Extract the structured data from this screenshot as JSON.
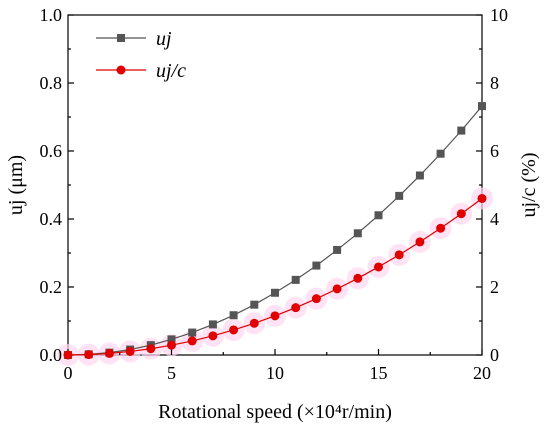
{
  "chart_data": {
    "type": "line",
    "xlabel": "Rotational speed (×10⁴r/min)",
    "ylabel": "uj (μm)",
    "y2label": "uj/c (%)",
    "xlim": [
      0,
      20
    ],
    "ylim": [
      0,
      1.0
    ],
    "y2lim": [
      0,
      10
    ],
    "x_ticks": [
      0,
      5,
      10,
      15,
      20
    ],
    "x_tick_labels": [
      "0",
      "5",
      "10",
      "15",
      "20"
    ],
    "y_ticks": [
      0,
      0.2,
      0.4,
      0.6,
      0.8,
      1.0
    ],
    "y_tick_labels": [
      "0.0",
      "0.2",
      "0.4",
      "0.6",
      "0.8",
      "1.0"
    ],
    "y2_ticks": [
      0,
      2,
      4,
      6,
      8,
      10
    ],
    "y2_tick_labels": [
      "0",
      "2",
      "4",
      "6",
      "8",
      "10"
    ],
    "grid": false,
    "legend_position": "top-left",
    "x": [
      0,
      1,
      2,
      3,
      4,
      5,
      6,
      7,
      8,
      9,
      10,
      11,
      12,
      13,
      14,
      15,
      16,
      17,
      18,
      19,
      20
    ],
    "series": [
      {
        "name": "uj",
        "axis": "left",
        "marker": "square",
        "color": "#555555",
        "values": [
          0.0,
          0.002,
          0.007,
          0.016,
          0.029,
          0.046,
          0.066,
          0.09,
          0.117,
          0.148,
          0.183,
          0.221,
          0.263,
          0.309,
          0.358,
          0.411,
          0.468,
          0.528,
          0.592,
          0.66,
          0.732
        ]
      },
      {
        "name": "uj/c",
        "axis": "right",
        "marker": "circle",
        "color": "#e00000",
        "values": [
          0.0,
          0.012,
          0.046,
          0.104,
          0.184,
          0.288,
          0.414,
          0.564,
          0.737,
          0.932,
          1.151,
          1.393,
          1.657,
          1.945,
          2.256,
          2.59,
          2.946,
          3.326,
          3.729,
          4.155,
          4.604
        ]
      }
    ]
  }
}
